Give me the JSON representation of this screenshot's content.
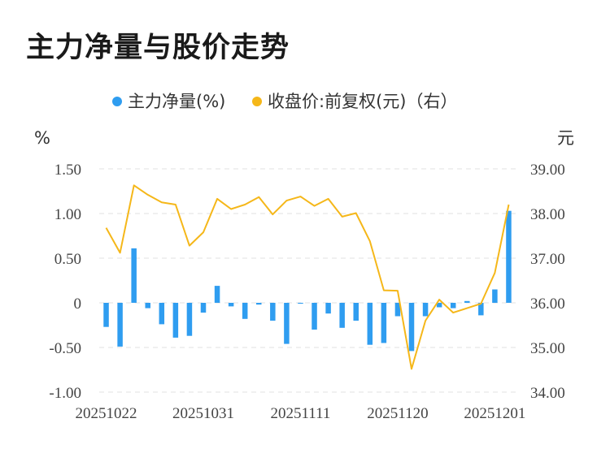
{
  "page": {
    "title": "主力净量与股价走势"
  },
  "colors": {
    "bar": "#2f9df0",
    "line": "#f5b719",
    "grid": "#e2e2e2"
  },
  "chart_data": {
    "type": "bar+line",
    "title": "主力净量与股价走势",
    "legend": [
      {
        "name": "主力净量(%)",
        "color": "#2f9df0"
      },
      {
        "name": "收盘价:前复权(元)（右）",
        "color": "#f5b719"
      }
    ],
    "legend_position": "top-center",
    "y_left": {
      "unit": "%",
      "min": -1.0,
      "max": 1.5,
      "ticks": [
        "1.50",
        "1.00",
        "0.50",
        "0",
        "-0.50",
        "-1.00"
      ],
      "tick_values": [
        1.5,
        1.0,
        0.5,
        0,
        -0.5,
        -1.0
      ]
    },
    "y_right": {
      "unit": "元",
      "min": 34.0,
      "max": 39.0,
      "ticks": [
        "39.00",
        "38.00",
        "37.00",
        "36.00",
        "35.00",
        "34.00"
      ],
      "tick_values": [
        39,
        38,
        37,
        36,
        35,
        34
      ]
    },
    "x_tick_labels": [
      {
        "index": 0,
        "label": "20251022"
      },
      {
        "index": 7,
        "label": "20251031"
      },
      {
        "index": 14,
        "label": "20251111"
      },
      {
        "index": 21,
        "label": "20251120"
      },
      {
        "index": 28,
        "label": "20251201"
      }
    ],
    "grid": true,
    "series": [
      {
        "name": "主力净量(%)",
        "type": "bar",
        "axis": "left",
        "values": [
          -0.27,
          -0.49,
          0.61,
          -0.06,
          -0.24,
          -0.39,
          -0.37,
          -0.11,
          0.19,
          -0.04,
          -0.18,
          -0.02,
          -0.2,
          -0.46,
          -0.01,
          -0.3,
          -0.12,
          -0.28,
          -0.2,
          -0.47,
          -0.45,
          -0.15,
          -0.54,
          -0.15,
          -0.05,
          -0.06,
          0.02,
          -0.14,
          0.15,
          1.03
        ]
      },
      {
        "name": "收盘价:前复权(元)（右）",
        "type": "line",
        "axis": "right",
        "values": [
          37.68,
          37.12,
          38.63,
          38.42,
          38.25,
          38.2,
          37.28,
          37.58,
          38.33,
          38.1,
          38.2,
          38.37,
          37.98,
          38.29,
          38.38,
          38.17,
          38.33,
          37.93,
          38.01,
          37.38,
          36.28,
          36.27,
          34.52,
          35.6,
          36.07,
          35.78,
          35.88,
          35.98,
          36.67,
          38.2
        ]
      }
    ]
  }
}
